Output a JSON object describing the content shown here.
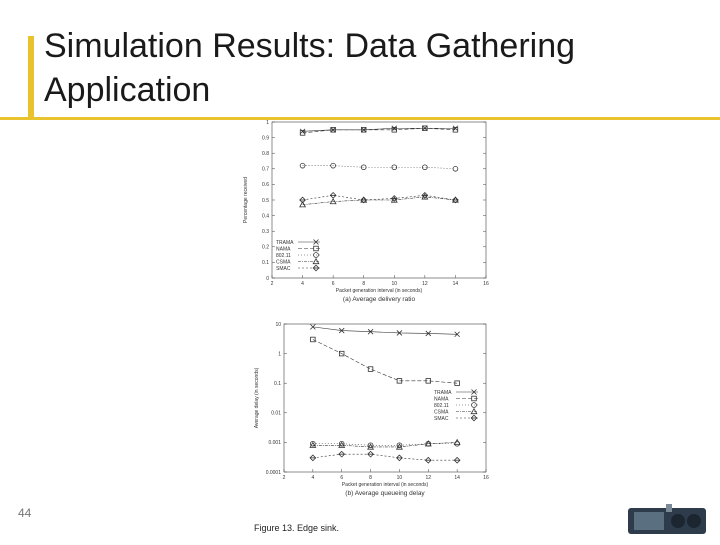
{
  "slide": {
    "title": "Simulation Results: Data Gathering Application",
    "number": "44",
    "figure_caption": "Figure 13. Edge sink."
  },
  "chart_data": [
    {
      "type": "line",
      "subtitle": "(a) Average delivery ratio",
      "xlabel": "Packet generation interval (in seconds)",
      "ylabel": "Percentage received",
      "x": [
        4,
        6,
        8,
        10,
        12,
        14
      ],
      "xlim": [
        2,
        16
      ],
      "xticks": [
        "2",
        "4",
        "6",
        "8",
        "10",
        "12",
        "14",
        "16"
      ],
      "ylim": [
        0,
        1
      ],
      "yticks": [
        "0",
        "0.1",
        "0.2",
        "0.3",
        "0.4",
        "0.5",
        "0.6",
        "0.7",
        "0.8",
        "0.9",
        "1"
      ],
      "legend_position": "bottom-left",
      "series": [
        {
          "name": "TRAMA",
          "marker": "x",
          "values": [
            0.94,
            0.95,
            0.95,
            0.96,
            0.96,
            0.96
          ]
        },
        {
          "name": "NAMA",
          "marker": "square",
          "values": [
            0.93,
            0.95,
            0.95,
            0.95,
            0.96,
            0.95
          ]
        },
        {
          "name": "802.11",
          "marker": "circle",
          "values": [
            0.72,
            0.72,
            0.71,
            0.71,
            0.71,
            0.7
          ]
        },
        {
          "name": "CSMA",
          "marker": "triangle",
          "values": [
            0.47,
            0.49,
            0.5,
            0.5,
            0.52,
            0.5
          ]
        },
        {
          "name": "SMAC",
          "marker": "diamond",
          "values": [
            0.5,
            0.53,
            0.5,
            0.51,
            0.53,
            0.5
          ]
        }
      ]
    },
    {
      "type": "line",
      "subtitle": "(b) Average queueing delay",
      "xlabel": "Packet generation interval (in seconds)",
      "ylabel": "Average delay (in seconds)",
      "log_y": true,
      "x": [
        4,
        6,
        8,
        10,
        12,
        14
      ],
      "xlim": [
        2,
        16
      ],
      "xticks": [
        "2",
        "4",
        "6",
        "8",
        "10",
        "12",
        "14",
        "16"
      ],
      "ylim": [
        0.0001,
        10
      ],
      "yticks": [
        "0.0001",
        "0.001",
        "0.01",
        "0.1",
        "1",
        "10"
      ],
      "legend_position": "center-right",
      "series": [
        {
          "name": "TRAMA",
          "marker": "x",
          "values": [
            8,
            6,
            5.5,
            5,
            4.8,
            4.5
          ]
        },
        {
          "name": "NAMA",
          "marker": "square",
          "values": [
            3,
            1,
            0.3,
            0.12,
            0.12,
            0.1
          ]
        },
        {
          "name": "802.11",
          "marker": "circle",
          "values": [
            0.0009,
            0.0009,
            0.0008,
            0.0008,
            0.0009,
            0.0009
          ]
        },
        {
          "name": "CSMA",
          "marker": "triangle",
          "values": [
            0.0008,
            0.0008,
            0.0007,
            0.0007,
            0.0009,
            0.001
          ]
        },
        {
          "name": "SMAC",
          "marker": "diamond",
          "values": [
            0.0003,
            0.0004,
            0.0004,
            0.0003,
            0.00025,
            0.00025
          ]
        }
      ]
    }
  ]
}
